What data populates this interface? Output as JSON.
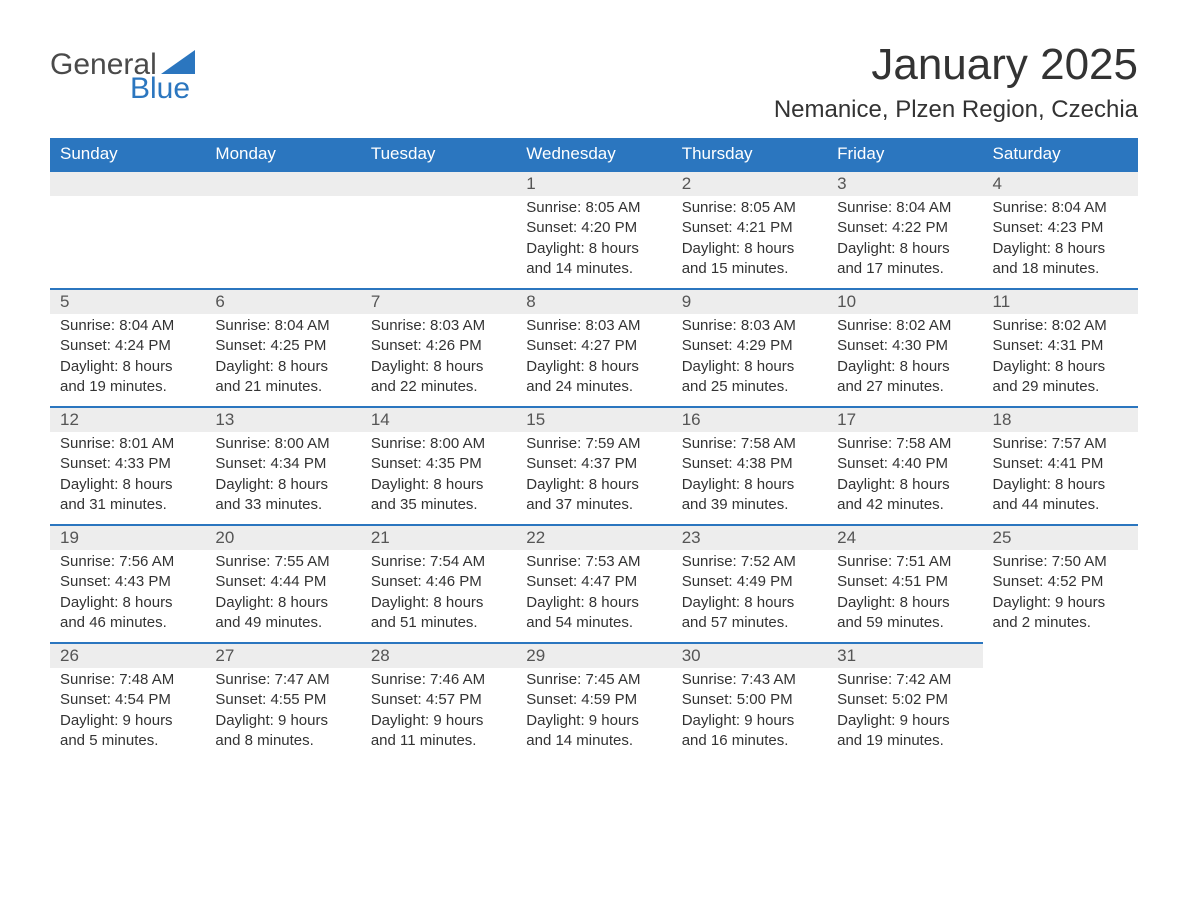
{
  "brand": {
    "part1": "General",
    "part2": "Blue",
    "accent_color": "#2b76bf"
  },
  "title": "January 2025",
  "location": "Nemanice, Plzen Region, Czechia",
  "colors": {
    "header_bg": "#2b76bf",
    "header_text": "#ffffff",
    "daynum_bg": "#ededed",
    "daynum_border": "#2b76bf",
    "body_text": "#333333",
    "page_bg": "#ffffff"
  },
  "typography": {
    "title_fontsize": 44,
    "location_fontsize": 24,
    "weekday_fontsize": 17,
    "daynum_fontsize": 17,
    "body_fontsize": 15
  },
  "weekdays": [
    "Sunday",
    "Monday",
    "Tuesday",
    "Wednesday",
    "Thursday",
    "Friday",
    "Saturday"
  ],
  "weeks": [
    [
      null,
      null,
      null,
      {
        "n": "1",
        "sr": "Sunrise: 8:05 AM",
        "ss": "Sunset: 4:20 PM",
        "d1": "Daylight: 8 hours",
        "d2": "and 14 minutes."
      },
      {
        "n": "2",
        "sr": "Sunrise: 8:05 AM",
        "ss": "Sunset: 4:21 PM",
        "d1": "Daylight: 8 hours",
        "d2": "and 15 minutes."
      },
      {
        "n": "3",
        "sr": "Sunrise: 8:04 AM",
        "ss": "Sunset: 4:22 PM",
        "d1": "Daylight: 8 hours",
        "d2": "and 17 minutes."
      },
      {
        "n": "4",
        "sr": "Sunrise: 8:04 AM",
        "ss": "Sunset: 4:23 PM",
        "d1": "Daylight: 8 hours",
        "d2": "and 18 minutes."
      }
    ],
    [
      {
        "n": "5",
        "sr": "Sunrise: 8:04 AM",
        "ss": "Sunset: 4:24 PM",
        "d1": "Daylight: 8 hours",
        "d2": "and 19 minutes."
      },
      {
        "n": "6",
        "sr": "Sunrise: 8:04 AM",
        "ss": "Sunset: 4:25 PM",
        "d1": "Daylight: 8 hours",
        "d2": "and 21 minutes."
      },
      {
        "n": "7",
        "sr": "Sunrise: 8:03 AM",
        "ss": "Sunset: 4:26 PM",
        "d1": "Daylight: 8 hours",
        "d2": "and 22 minutes."
      },
      {
        "n": "8",
        "sr": "Sunrise: 8:03 AM",
        "ss": "Sunset: 4:27 PM",
        "d1": "Daylight: 8 hours",
        "d2": "and 24 minutes."
      },
      {
        "n": "9",
        "sr": "Sunrise: 8:03 AM",
        "ss": "Sunset: 4:29 PM",
        "d1": "Daylight: 8 hours",
        "d2": "and 25 minutes."
      },
      {
        "n": "10",
        "sr": "Sunrise: 8:02 AM",
        "ss": "Sunset: 4:30 PM",
        "d1": "Daylight: 8 hours",
        "d2": "and 27 minutes."
      },
      {
        "n": "11",
        "sr": "Sunrise: 8:02 AM",
        "ss": "Sunset: 4:31 PM",
        "d1": "Daylight: 8 hours",
        "d2": "and 29 minutes."
      }
    ],
    [
      {
        "n": "12",
        "sr": "Sunrise: 8:01 AM",
        "ss": "Sunset: 4:33 PM",
        "d1": "Daylight: 8 hours",
        "d2": "and 31 minutes."
      },
      {
        "n": "13",
        "sr": "Sunrise: 8:00 AM",
        "ss": "Sunset: 4:34 PM",
        "d1": "Daylight: 8 hours",
        "d2": "and 33 minutes."
      },
      {
        "n": "14",
        "sr": "Sunrise: 8:00 AM",
        "ss": "Sunset: 4:35 PM",
        "d1": "Daylight: 8 hours",
        "d2": "and 35 minutes."
      },
      {
        "n": "15",
        "sr": "Sunrise: 7:59 AM",
        "ss": "Sunset: 4:37 PM",
        "d1": "Daylight: 8 hours",
        "d2": "and 37 minutes."
      },
      {
        "n": "16",
        "sr": "Sunrise: 7:58 AM",
        "ss": "Sunset: 4:38 PM",
        "d1": "Daylight: 8 hours",
        "d2": "and 39 minutes."
      },
      {
        "n": "17",
        "sr": "Sunrise: 7:58 AM",
        "ss": "Sunset: 4:40 PM",
        "d1": "Daylight: 8 hours",
        "d2": "and 42 minutes."
      },
      {
        "n": "18",
        "sr": "Sunrise: 7:57 AM",
        "ss": "Sunset: 4:41 PM",
        "d1": "Daylight: 8 hours",
        "d2": "and 44 minutes."
      }
    ],
    [
      {
        "n": "19",
        "sr": "Sunrise: 7:56 AM",
        "ss": "Sunset: 4:43 PM",
        "d1": "Daylight: 8 hours",
        "d2": "and 46 minutes."
      },
      {
        "n": "20",
        "sr": "Sunrise: 7:55 AM",
        "ss": "Sunset: 4:44 PM",
        "d1": "Daylight: 8 hours",
        "d2": "and 49 minutes."
      },
      {
        "n": "21",
        "sr": "Sunrise: 7:54 AM",
        "ss": "Sunset: 4:46 PM",
        "d1": "Daylight: 8 hours",
        "d2": "and 51 minutes."
      },
      {
        "n": "22",
        "sr": "Sunrise: 7:53 AM",
        "ss": "Sunset: 4:47 PM",
        "d1": "Daylight: 8 hours",
        "d2": "and 54 minutes."
      },
      {
        "n": "23",
        "sr": "Sunrise: 7:52 AM",
        "ss": "Sunset: 4:49 PM",
        "d1": "Daylight: 8 hours",
        "d2": "and 57 minutes."
      },
      {
        "n": "24",
        "sr": "Sunrise: 7:51 AM",
        "ss": "Sunset: 4:51 PM",
        "d1": "Daylight: 8 hours",
        "d2": "and 59 minutes."
      },
      {
        "n": "25",
        "sr": "Sunrise: 7:50 AM",
        "ss": "Sunset: 4:52 PM",
        "d1": "Daylight: 9 hours",
        "d2": "and 2 minutes."
      }
    ],
    [
      {
        "n": "26",
        "sr": "Sunrise: 7:48 AM",
        "ss": "Sunset: 4:54 PM",
        "d1": "Daylight: 9 hours",
        "d2": "and 5 minutes."
      },
      {
        "n": "27",
        "sr": "Sunrise: 7:47 AM",
        "ss": "Sunset: 4:55 PM",
        "d1": "Daylight: 9 hours",
        "d2": "and 8 minutes."
      },
      {
        "n": "28",
        "sr": "Sunrise: 7:46 AM",
        "ss": "Sunset: 4:57 PM",
        "d1": "Daylight: 9 hours",
        "d2": "and 11 minutes."
      },
      {
        "n": "29",
        "sr": "Sunrise: 7:45 AM",
        "ss": "Sunset: 4:59 PM",
        "d1": "Daylight: 9 hours",
        "d2": "and 14 minutes."
      },
      {
        "n": "30",
        "sr": "Sunrise: 7:43 AM",
        "ss": "Sunset: 5:00 PM",
        "d1": "Daylight: 9 hours",
        "d2": "and 16 minutes."
      },
      {
        "n": "31",
        "sr": "Sunrise: 7:42 AM",
        "ss": "Sunset: 5:02 PM",
        "d1": "Daylight: 9 hours",
        "d2": "and 19 minutes."
      },
      null
    ]
  ]
}
